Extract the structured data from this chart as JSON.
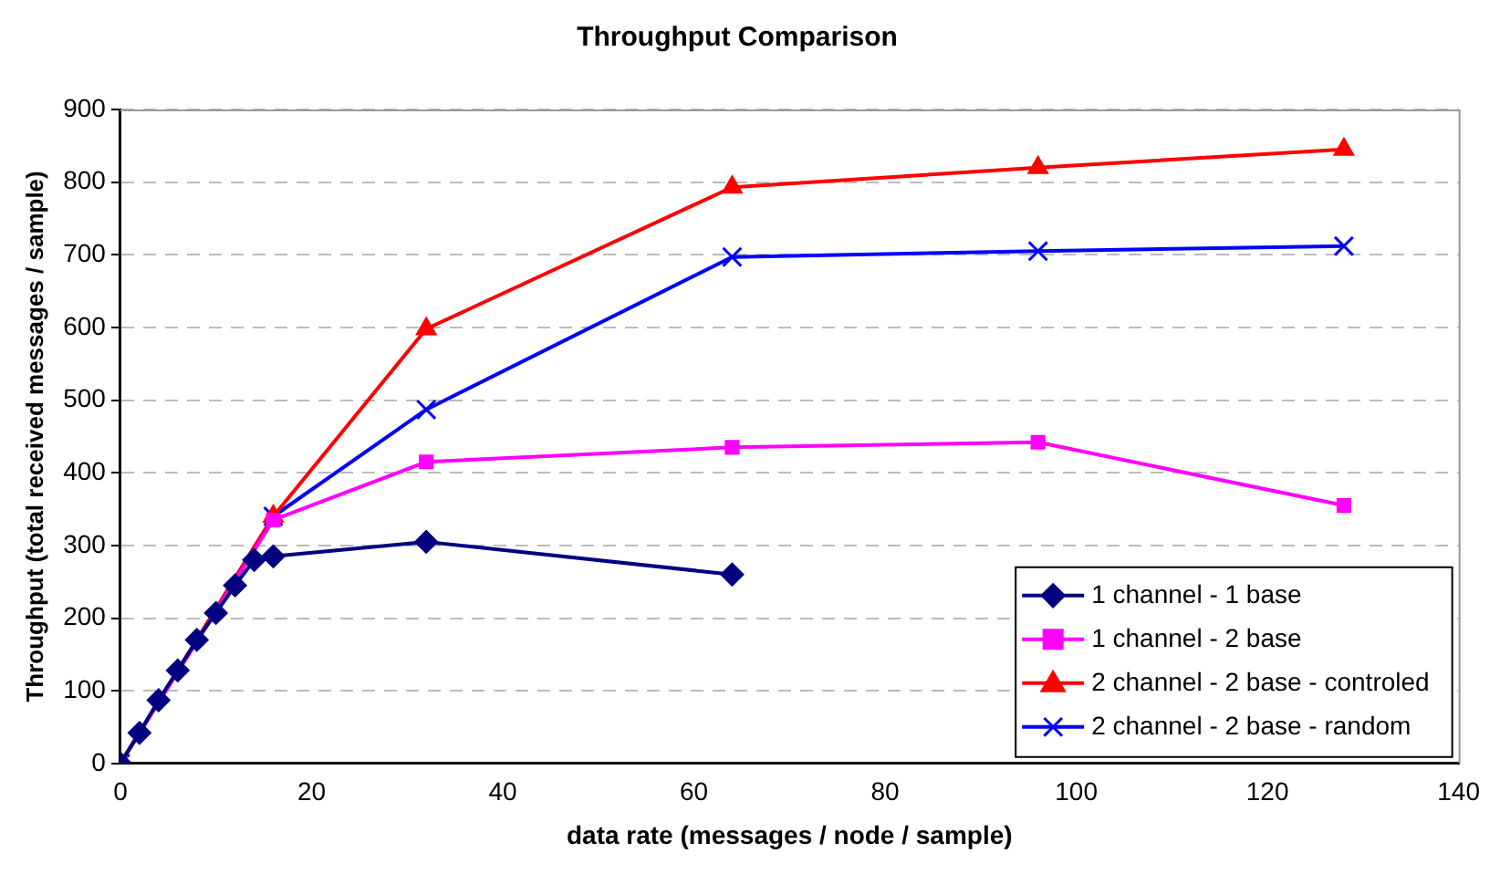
{
  "chart_data": {
    "type": "line",
    "title": "Throughput Comparison",
    "xlabel": "data rate (messages / node / sample)",
    "ylabel": "Throughput (total received messages / sample)",
    "xlim": [
      0,
      140
    ],
    "xticks": [
      0,
      20,
      40,
      60,
      80,
      100,
      120,
      140
    ],
    "ylim": [
      0,
      900
    ],
    "yticks": [
      0,
      100,
      200,
      300,
      400,
      500,
      600,
      700,
      800,
      900
    ],
    "grid": "y",
    "legend": "bottom right",
    "series": [
      {
        "name": "1 channel - 1 base",
        "color": "#000080",
        "marker": "diamond",
        "x": [
          0,
          2,
          4,
          6,
          8,
          10,
          12,
          14,
          16,
          32,
          64
        ],
        "values": [
          0,
          42,
          87,
          128,
          170,
          207,
          245,
          280,
          285,
          305,
          260
        ]
      },
      {
        "name": "1 channel - 2 base",
        "color": "#ff00ff",
        "marker": "square",
        "x": [
          0,
          16,
          32,
          64,
          96,
          128
        ],
        "values": [
          0,
          335,
          415,
          435,
          442,
          355
        ]
      },
      {
        "name": "2 channel - 2 base - controled",
        "color": "#ff0000",
        "marker": "triangle",
        "x": [
          0,
          16,
          32,
          64,
          96,
          128
        ],
        "values": [
          0,
          340,
          598,
          793,
          820,
          845
        ]
      },
      {
        "name": "2 channel - 2 base - random",
        "color": "#0000ff",
        "marker": "cross",
        "x": [
          0,
          16,
          32,
          64,
          96,
          128
        ],
        "values": [
          0,
          340,
          487,
          697,
          705,
          712
        ]
      }
    ]
  }
}
